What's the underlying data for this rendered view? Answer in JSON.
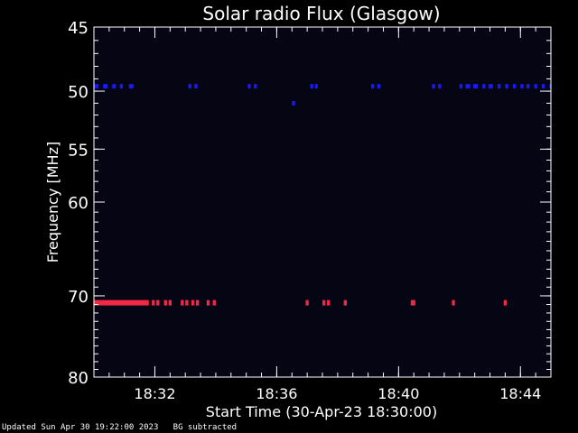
{
  "chart_data": {
    "type": "heatmap",
    "title": "Solar radio Flux (Glasgow)",
    "xlabel": "Start Time (30-Apr-23 18:30:00)",
    "ylabel": "Frequency [MHz]",
    "x_range_minutes": [
      0,
      15
    ],
    "x_ticks": [
      {
        "label": "18:32",
        "minute": 2
      },
      {
        "label": "18:36",
        "minute": 6
      },
      {
        "label": "18:40",
        "minute": 10
      },
      {
        "label": "18:44",
        "minute": 14
      }
    ],
    "y_scale": "log",
    "y_range_mhz": [
      45,
      80
    ],
    "y_ticks": [
      {
        "label": "45",
        "mhz": 45
      },
      {
        "label": "50",
        "mhz": 50
      },
      {
        "label": "55",
        "mhz": 55
      },
      {
        "label": "60",
        "mhz": 60
      },
      {
        "label": "70",
        "mhz": 70
      },
      {
        "label": "80",
        "mhz": 80
      }
    ],
    "colors": {
      "background": "#000000",
      "low_band": "#1a1aff",
      "high_band": "#ff2a4a",
      "axes": "#ffffff"
    },
    "emission_bands": [
      {
        "mhz": 49.6,
        "color": "#1a1aff",
        "segments": [
          [
            0.0,
            0.15
          ],
          [
            0.3,
            0.45
          ],
          [
            0.6,
            0.72
          ],
          [
            0.85,
            0.95
          ],
          [
            1.15,
            1.3
          ],
          [
            3.1,
            3.2
          ],
          [
            3.3,
            3.4
          ],
          [
            5.05,
            5.15
          ],
          [
            5.25,
            5.35
          ],
          [
            7.1,
            7.2
          ],
          [
            7.25,
            7.35
          ],
          [
            9.1,
            9.2
          ],
          [
            9.3,
            9.4
          ],
          [
            11.1,
            11.2
          ],
          [
            11.3,
            11.4
          ],
          [
            12.0,
            12.1
          ],
          [
            12.2,
            12.35
          ],
          [
            12.45,
            12.6
          ],
          [
            12.75,
            12.85
          ],
          [
            12.95,
            13.1
          ],
          [
            13.25,
            13.35
          ],
          [
            13.5,
            13.6
          ],
          [
            13.75,
            13.85
          ],
          [
            14.0,
            14.1
          ],
          [
            14.2,
            14.3
          ],
          [
            14.45,
            14.55
          ],
          [
            14.7,
            14.8
          ],
          [
            14.95,
            15.0
          ]
        ]
      },
      {
        "mhz": 51.0,
        "color": "#1a1aff",
        "segments": [
          [
            6.5,
            6.6
          ]
        ]
      },
      {
        "mhz": 70.8,
        "color": "#ff2a4a",
        "segments": [
          [
            0.0,
            1.8
          ],
          [
            1.9,
            2.0
          ],
          [
            2.05,
            2.15
          ],
          [
            2.3,
            2.4
          ],
          [
            2.45,
            2.55
          ],
          [
            2.85,
            2.95
          ],
          [
            3.0,
            3.1
          ],
          [
            3.2,
            3.3
          ],
          [
            3.35,
            3.45
          ],
          [
            3.7,
            3.8
          ],
          [
            3.9,
            4.0
          ],
          [
            6.95,
            7.05
          ],
          [
            7.5,
            7.6
          ],
          [
            7.65,
            7.75
          ],
          [
            8.2,
            8.3
          ],
          [
            10.4,
            10.55
          ],
          [
            11.75,
            11.85
          ],
          [
            13.45,
            13.55
          ]
        ]
      }
    ]
  },
  "footer": {
    "updated": "Updated Sun Apr 30 19:22:00 2023",
    "note": "BG subtracted"
  }
}
